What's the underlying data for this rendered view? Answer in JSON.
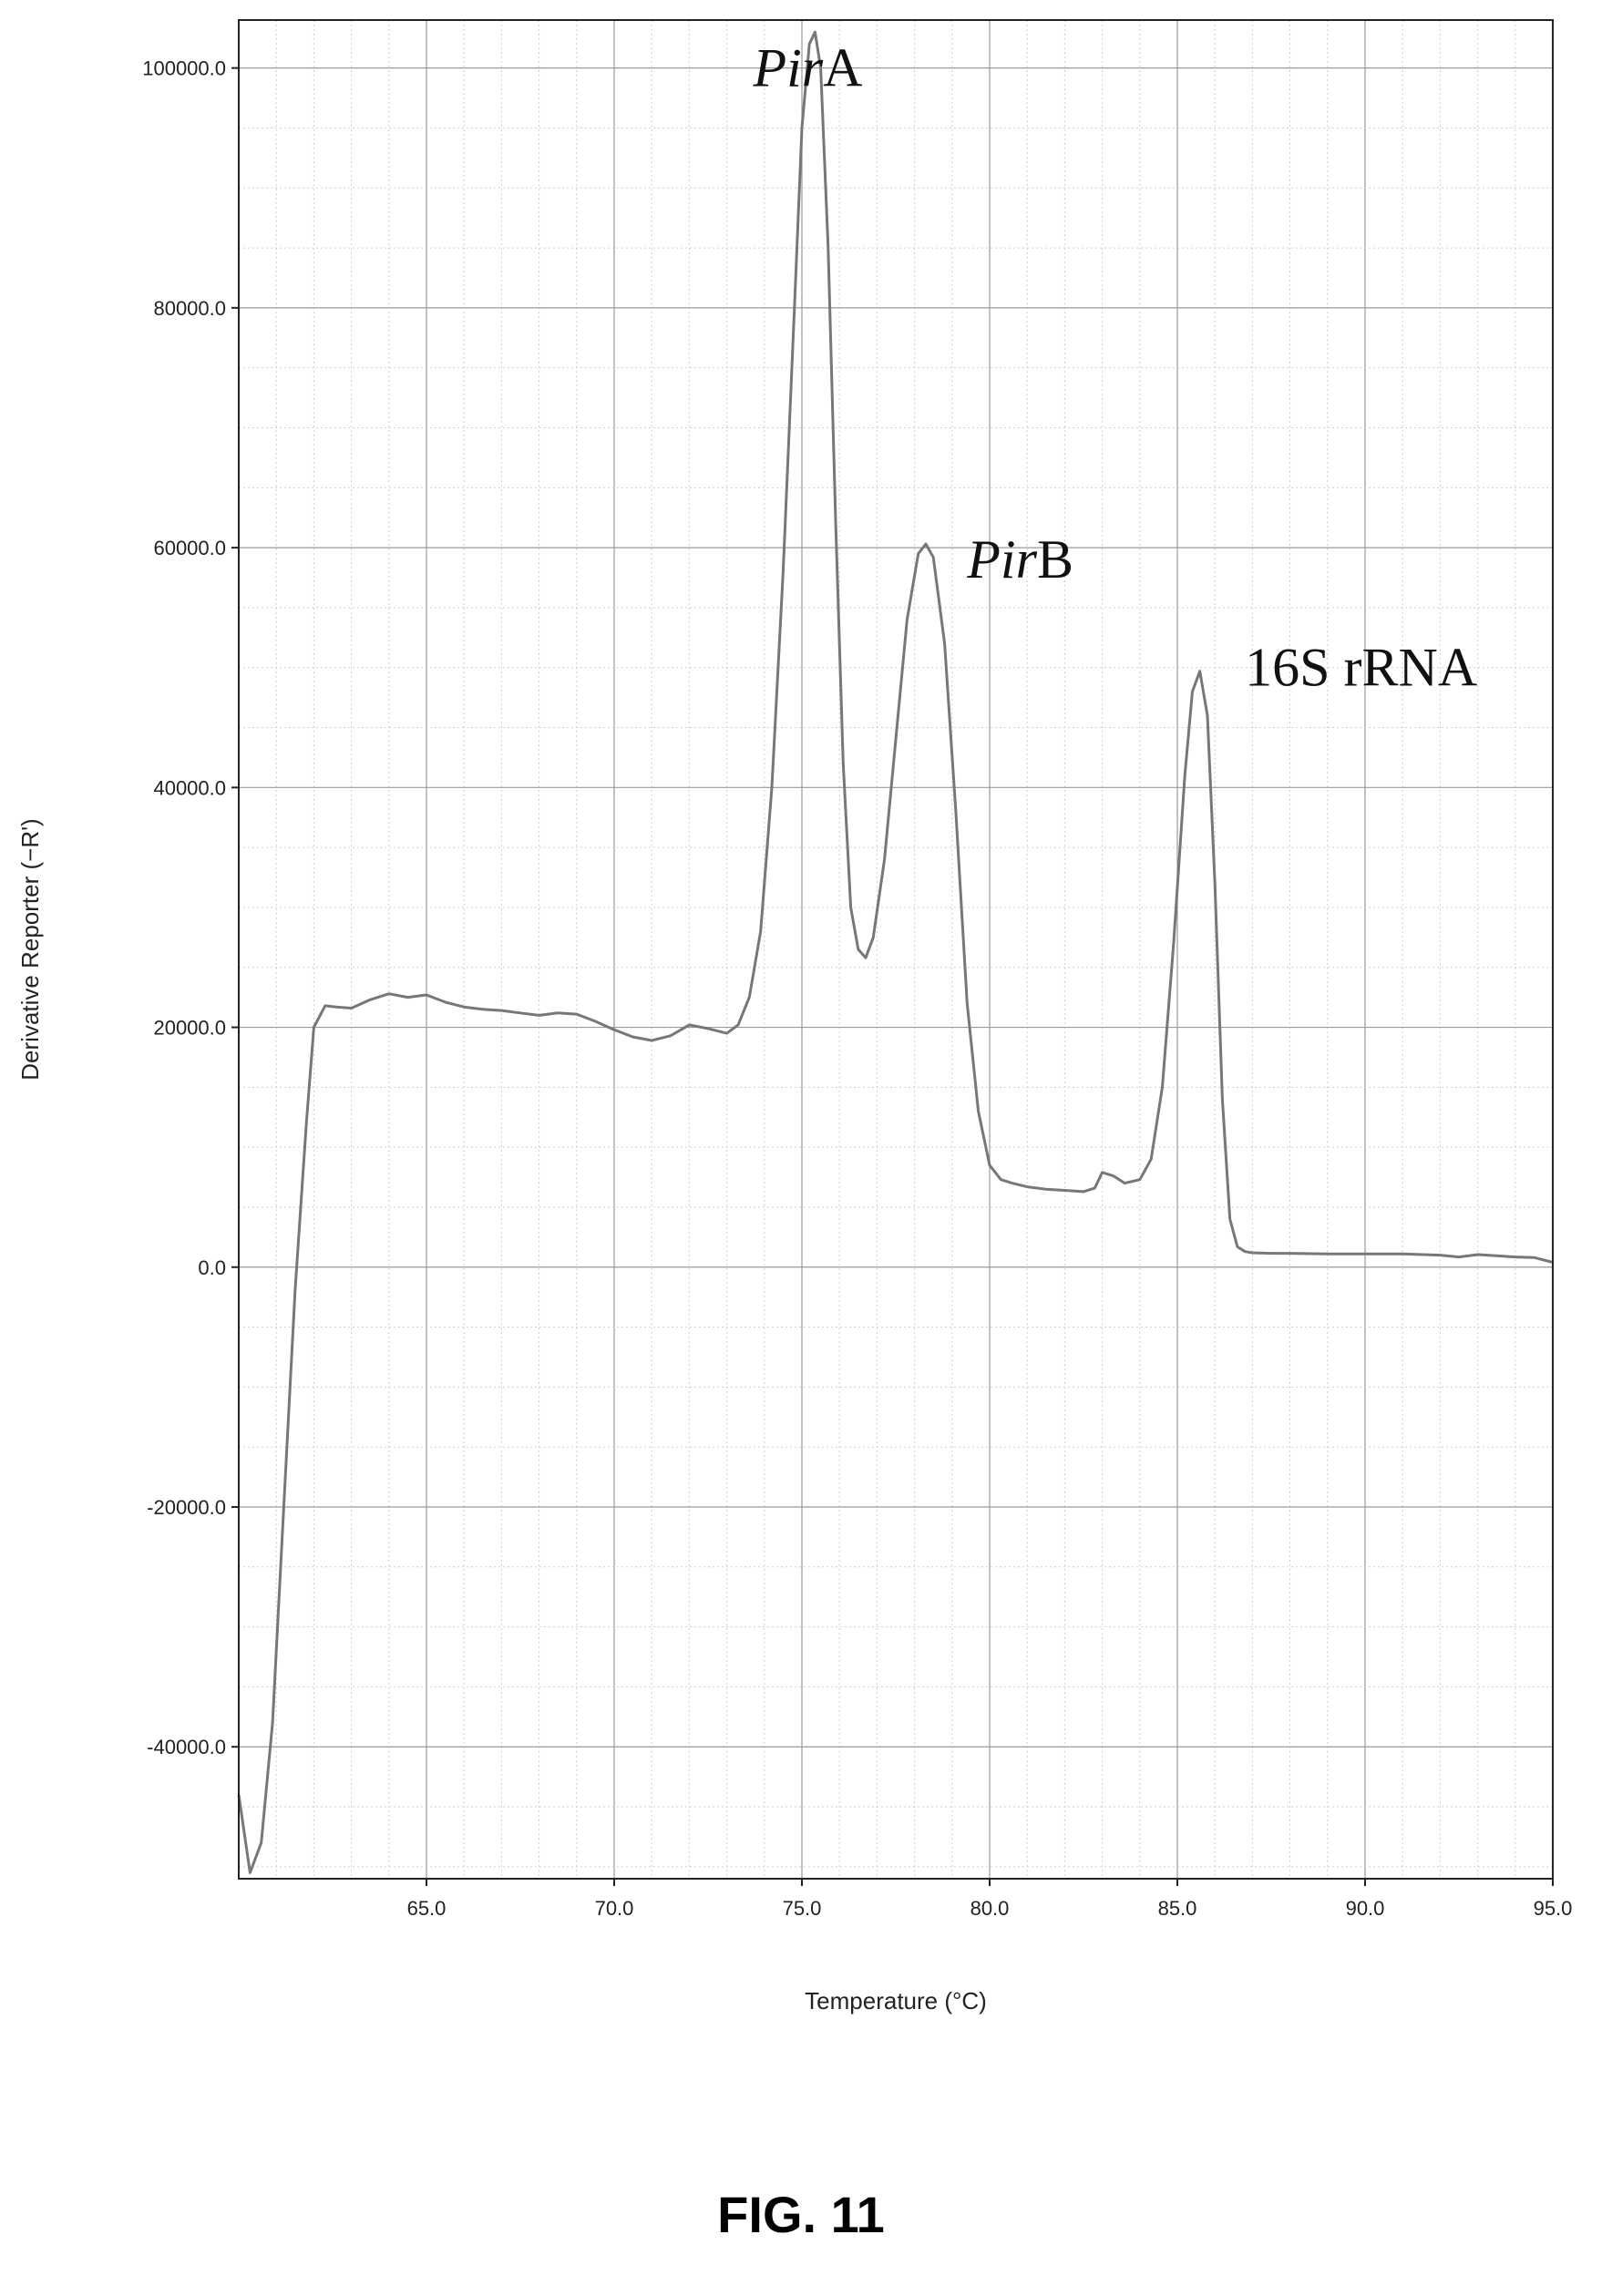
{
  "figure_label": "FIG. 11",
  "chart_data": {
    "type": "line",
    "title": "",
    "xlabel": "Temperature (°C)",
    "ylabel": "Derivative Reporter (−R')",
    "xlim": [
      60.0,
      95.0
    ],
    "ylim": [
      -51000,
      104000
    ],
    "x_ticks": [
      65.0,
      70.0,
      75.0,
      80.0,
      85.0,
      90.0,
      95.0
    ],
    "x_tick_labels": [
      "65.0",
      "70.0",
      "75.0",
      "80.0",
      "85.0",
      "90.0",
      "95.0"
    ],
    "y_ticks": [
      100000,
      80000,
      60000,
      40000,
      20000,
      0,
      -20000,
      -40000
    ],
    "y_tick_labels": [
      "100000.0",
      "80000.0",
      "60000.0",
      "40000.0",
      "20000.0",
      "0.0",
      "-20000.0",
      "-40000.0"
    ],
    "grid": true,
    "line_color": "#777777",
    "annotations": [
      {
        "italic": "Pir",
        "text": "A",
        "x": 73.7,
        "y": 98500
      },
      {
        "italic": "Pir",
        "text": "B",
        "x": 79.4,
        "y": 57500
      },
      {
        "italic": "",
        "text": "16S rRNA",
        "x": 86.8,
        "y": 48500
      }
    ],
    "series": [
      {
        "name": "",
        "x": [
          60.0,
          60.3,
          60.6,
          60.9,
          61.2,
          61.5,
          61.8,
          62.0,
          62.3,
          62.6,
          63.0,
          63.5,
          64.0,
          64.5,
          65.0,
          65.5,
          66.0,
          66.5,
          67.0,
          67.5,
          68.0,
          68.5,
          69.0,
          69.5,
          70.0,
          70.5,
          71.0,
          71.5,
          72.0,
          72.5,
          73.0,
          73.3,
          73.6,
          73.9,
          74.2,
          74.5,
          74.8,
          75.0,
          75.2,
          75.35,
          75.5,
          75.7,
          75.9,
          76.1,
          76.3,
          76.5,
          76.7,
          76.9,
          77.2,
          77.5,
          77.8,
          78.1,
          78.3,
          78.5,
          78.8,
          79.1,
          79.4,
          79.7,
          80.0,
          80.3,
          80.6,
          81.0,
          81.5,
          82.0,
          82.5,
          82.8,
          83.0,
          83.3,
          83.6,
          84.0,
          84.3,
          84.6,
          84.9,
          85.2,
          85.4,
          85.6,
          85.8,
          86.0,
          86.2,
          86.4,
          86.6,
          86.8,
          87.0,
          87.5,
          88.0,
          89.0,
          90.0,
          91.0,
          92.0,
          92.5,
          93.0,
          94.0,
          94.5,
          95.0
        ],
        "values": [
          -44000,
          -50500,
          -48000,
          -38000,
          -20000,
          -2000,
          12000,
          20000,
          21800,
          21700,
          21600,
          22300,
          22800,
          22500,
          22700,
          22100,
          21700,
          21500,
          21400,
          21200,
          21000,
          21200,
          21100,
          20500,
          19800,
          19200,
          18900,
          19300,
          20200,
          19900,
          19500,
          20200,
          22500,
          28000,
          40000,
          58000,
          80000,
          95000,
          102000,
          103000,
          100000,
          85000,
          62000,
          42000,
          30000,
          26500,
          25800,
          27500,
          34000,
          44000,
          54000,
          59500,
          60300,
          59200,
          52000,
          38000,
          22000,
          13000,
          8500,
          7300,
          7000,
          6700,
          6500,
          6400,
          6300,
          6600,
          7900,
          7600,
          7000,
          7300,
          9000,
          15000,
          27000,
          41000,
          48000,
          49700,
          46000,
          32000,
          14000,
          4000,
          1700,
          1300,
          1200,
          1150,
          1150,
          1100,
          1100,
          1100,
          1000,
          850,
          1050,
          850,
          800,
          400
        ]
      }
    ]
  }
}
